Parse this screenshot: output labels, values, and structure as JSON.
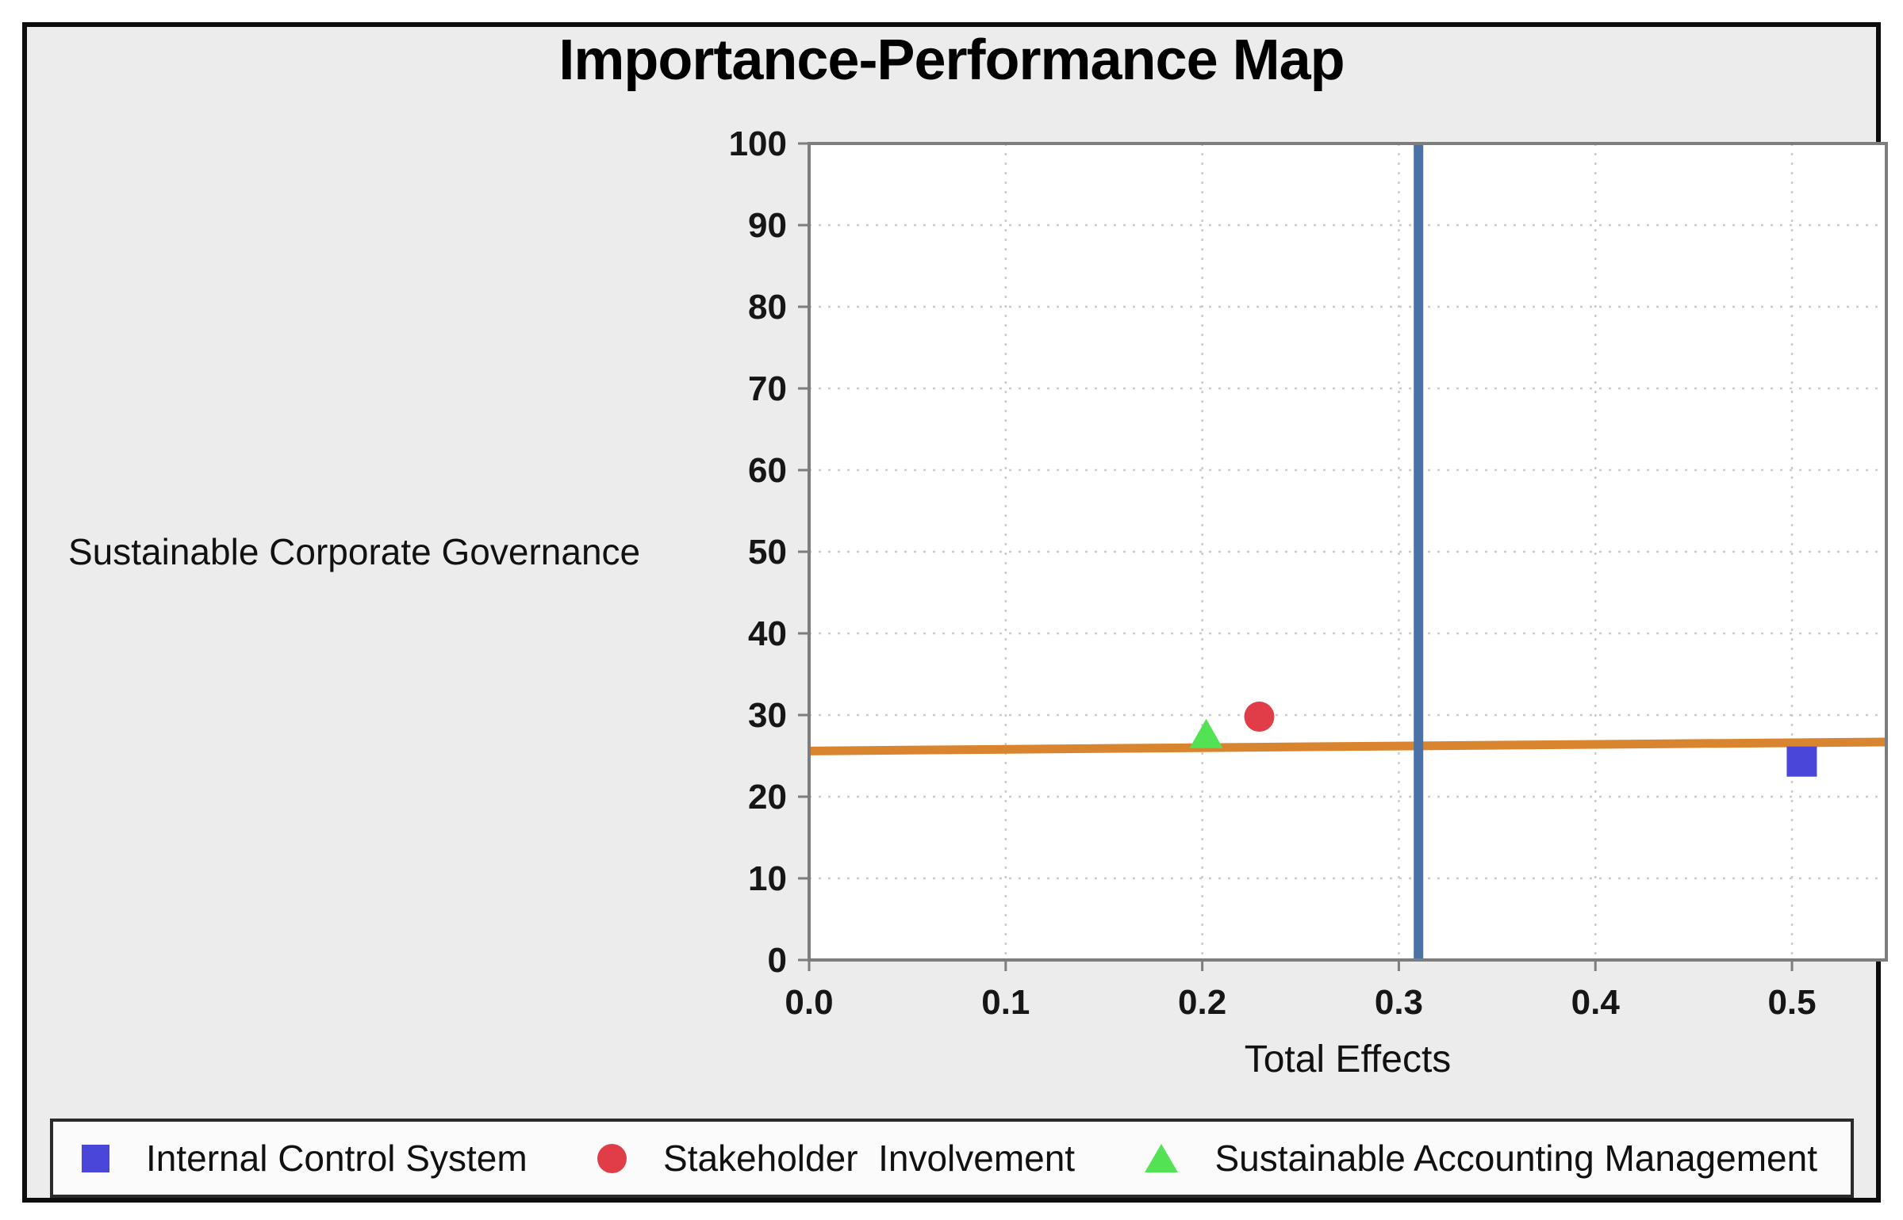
{
  "title": "Importance-Performance Map",
  "axes": {
    "x_title": "Total Effects",
    "y_title": "Sustainable Corporate Governance"
  },
  "chart_data": {
    "type": "scatter",
    "title": "Importance-Performance Map",
    "xlabel": "Total Effects",
    "ylabel": "Sustainable Corporate Governance",
    "xlim": [
      0,
      0.548
    ],
    "ylim": [
      0,
      100
    ],
    "x_ticks": [
      0.0,
      0.1,
      0.2,
      0.3,
      0.4,
      0.5
    ],
    "x_tick_labels": [
      "0.0",
      "0.1",
      "0.2",
      "0.3",
      "0.4",
      "0.5"
    ],
    "y_ticks": [
      0,
      10,
      20,
      30,
      40,
      50,
      60,
      70,
      80,
      90,
      100
    ],
    "grid": true,
    "grid_style": "dotted",
    "plot_bg": "#ffffff",
    "figure_bg": "#ececec",
    "axis_color": "#7d7d7d",
    "grid_color": "#cbcbcb",
    "legend_position": "bottom",
    "series": [
      {
        "name": "Internal Control System",
        "marker": "square",
        "color": "#4a46d9",
        "points": [
          {
            "x": 0.505,
            "y": 24.3
          }
        ]
      },
      {
        "name": "Stakeholder  Involvement",
        "marker": "circle",
        "color": "#e03d48",
        "points": [
          {
            "x": 0.229,
            "y": 29.8
          }
        ]
      },
      {
        "name": "Sustainable Accounting Management",
        "marker": "triangle",
        "color": "#53e253",
        "points": [
          {
            "x": 0.202,
            "y": 27.6
          }
        ]
      }
    ],
    "reference_lines": {
      "vertical": {
        "x": 0.31,
        "color": "#4a72a6",
        "extent": "full-height"
      },
      "horizontal": {
        "y_start": 25.6,
        "y_end": 26.7,
        "color": "#d9842f",
        "extent": "full-width"
      }
    }
  },
  "legend": {
    "items": [
      {
        "label": "Internal Control System",
        "marker": "square",
        "color": "#4a46d9"
      },
      {
        "label": "Stakeholder  Involvement",
        "marker": "circle",
        "color": "#e03d48"
      },
      {
        "label": "Sustainable Accounting Management",
        "marker": "triangle",
        "color": "#53e253"
      }
    ]
  }
}
